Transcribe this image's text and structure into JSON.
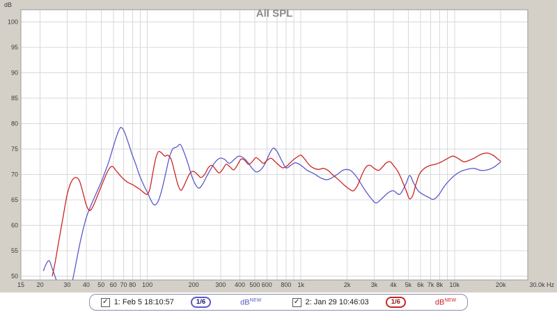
{
  "legend": {
    "entries": [
      {
        "check": "✓",
        "label": "1: Feb 5 18:10:57",
        "smoothing": "1/6",
        "unit": "dB",
        "unit_sup": "NEW",
        "color": "#5a5ac8",
        "badge_text": "#14147d"
      },
      {
        "check": "✓",
        "label": "2: Jan 29 10:46:03",
        "smoothing": "1/6",
        "unit": "dB",
        "unit_sup": "NEW",
        "color": "#cc2323",
        "badge_text": "#8c1414"
      }
    ]
  },
  "chart_data": {
    "type": "line",
    "title": "All SPL",
    "ylabel": "dB",
    "x_unit": "Hz",
    "x_scale": "log",
    "xlim": [
      15,
      30000
    ],
    "ylim": [
      49.25,
      102.4
    ],
    "grid": true,
    "y_ticks": [
      100,
      95,
      90,
      85,
      80,
      75,
      70,
      65,
      60,
      55,
      50
    ],
    "y_grid": [
      50,
      55,
      60,
      65,
      70,
      75,
      80,
      85,
      90,
      95,
      100
    ],
    "x_grid": [
      20,
      30,
      40,
      50,
      60,
      70,
      80,
      90,
      100,
      200,
      300,
      400,
      500,
      600,
      700,
      800,
      900,
      1000,
      2000,
      3000,
      4000,
      5000,
      6000,
      7000,
      8000,
      9000,
      10000,
      20000
    ],
    "x_ticks": [
      {
        "f": 15,
        "label": "15"
      },
      {
        "f": 20,
        "label": "20"
      },
      {
        "f": 30,
        "label": "30"
      },
      {
        "f": 40,
        "label": "40"
      },
      {
        "f": 50,
        "label": "50"
      },
      {
        "f": 60,
        "label": "60"
      },
      {
        "f": 70,
        "label": "70"
      },
      {
        "f": 80,
        "label": "80"
      },
      {
        "f": 100,
        "label": "100"
      },
      {
        "f": 200,
        "label": "200"
      },
      {
        "f": 300,
        "label": "300"
      },
      {
        "f": 400,
        "label": "400"
      },
      {
        "f": 500,
        "label": "500"
      },
      {
        "f": 600,
        "label": "600"
      },
      {
        "f": 800,
        "label": "800"
      },
      {
        "f": 1000,
        "label": "1k"
      },
      {
        "f": 2000,
        "label": "2k"
      },
      {
        "f": 3000,
        "label": "3k"
      },
      {
        "f": 4000,
        "label": "4k"
      },
      {
        "f": 5000,
        "label": "5k"
      },
      {
        "f": 6000,
        "label": "6k"
      },
      {
        "f": 7000,
        "label": "7k"
      },
      {
        "f": 8000,
        "label": "8k"
      },
      {
        "f": 10000,
        "label": "10k"
      },
      {
        "f": 20000,
        "label": "20k"
      },
      {
        "f": 30000,
        "label": "30.0k Hz",
        "anchor": "end"
      }
    ],
    "series": [
      {
        "name": "1: Feb 5 18:10:57",
        "color": "#5a5ac8",
        "points": [
          [
            21,
            51
          ],
          [
            22,
            52.5
          ],
          [
            23,
            53
          ],
          [
            24,
            51.5
          ],
          [
            25,
            50
          ],
          [
            27,
            47
          ],
          [
            29,
            44.5
          ],
          [
            31,
            46
          ],
          [
            33,
            50
          ],
          [
            35,
            54
          ],
          [
            37,
            57.5
          ],
          [
            40,
            61.5
          ],
          [
            43,
            64
          ],
          [
            46,
            66
          ],
          [
            50,
            68.5
          ],
          [
            53,
            70.5
          ],
          [
            56,
            72.5
          ],
          [
            60,
            75.5
          ],
          [
            63,
            77.5
          ],
          [
            66,
            79
          ],
          [
            68,
            79.2
          ],
          [
            71,
            78.3
          ],
          [
            75,
            76.3
          ],
          [
            79,
            74.2
          ],
          [
            84,
            72
          ],
          [
            89,
            69.8
          ],
          [
            95,
            67.8
          ],
          [
            100,
            66.5
          ],
          [
            106,
            64.8
          ],
          [
            111,
            64
          ],
          [
            117,
            64.6
          ],
          [
            123,
            66.5
          ],
          [
            130,
            69.5
          ],
          [
            138,
            73
          ],
          [
            146,
            75
          ],
          [
            155,
            75.4
          ],
          [
            164,
            75.9
          ],
          [
            173,
            74.4
          ],
          [
            183,
            72.3
          ],
          [
            193,
            70
          ],
          [
            204,
            68.2
          ],
          [
            216,
            67.3
          ],
          [
            229,
            68.1
          ],
          [
            243,
            69.6
          ],
          [
            259,
            71.1
          ],
          [
            276,
            72.4
          ],
          [
            296,
            73.2
          ],
          [
            317,
            73
          ],
          [
            341,
            72.2
          ],
          [
            366,
            72.9
          ],
          [
            392,
            73.6
          ],
          [
            420,
            73.3
          ],
          [
            450,
            72.4
          ],
          [
            481,
            71.2
          ],
          [
            512,
            70.5
          ],
          [
            546,
            70.9
          ],
          [
            583,
            72.1
          ],
          [
            622,
            74
          ],
          [
            661,
            75.2
          ],
          [
            702,
            74.4
          ],
          [
            750,
            72.7
          ],
          [
            800,
            71.3
          ],
          [
            858,
            71.8
          ],
          [
            920,
            72.3
          ],
          [
            1000,
            71.8
          ],
          [
            1100,
            70.8
          ],
          [
            1210,
            70.2
          ],
          [
            1350,
            69.3
          ],
          [
            1500,
            69
          ],
          [
            1700,
            69.9
          ],
          [
            1900,
            70.9
          ],
          [
            2100,
            70.8
          ],
          [
            2320,
            69.4
          ],
          [
            2600,
            67
          ],
          [
            2900,
            65.1
          ],
          [
            3100,
            64.4
          ],
          [
            3400,
            65.4
          ],
          [
            3700,
            66.4
          ],
          [
            4000,
            66.8
          ],
          [
            4400,
            66.1
          ],
          [
            4800,
            68
          ],
          [
            5100,
            69.8
          ],
          [
            5400,
            68.4
          ],
          [
            5800,
            66.8
          ],
          [
            6300,
            66
          ],
          [
            6800,
            65.5
          ],
          [
            7300,
            65.1
          ],
          [
            7900,
            66
          ],
          [
            8600,
            67.7
          ],
          [
            9300,
            68.9
          ],
          [
            10000,
            69.8
          ],
          [
            11000,
            70.6
          ],
          [
            12100,
            71
          ],
          [
            13400,
            71.2
          ],
          [
            15000,
            70.8
          ],
          [
            16800,
            71
          ],
          [
            18400,
            71.6
          ],
          [
            20000,
            72.5
          ]
        ]
      },
      {
        "name": "2: Jan 29 10:46:03",
        "color": "#cc2323",
        "points": [
          [
            24,
            50
          ],
          [
            25,
            52.5
          ],
          [
            26,
            55.5
          ],
          [
            28,
            61
          ],
          [
            30,
            66
          ],
          [
            32,
            68.6
          ],
          [
            34,
            69.4
          ],
          [
            36,
            68.8
          ],
          [
            38,
            66.5
          ],
          [
            40,
            64
          ],
          [
            42,
            62.9
          ],
          [
            44,
            63.6
          ],
          [
            47,
            65.6
          ],
          [
            50,
            67.6
          ],
          [
            53,
            69.5
          ],
          [
            56,
            71
          ],
          [
            59,
            71.6
          ],
          [
            62,
            70.9
          ],
          [
            66,
            69.9
          ],
          [
            70,
            69.1
          ],
          [
            75,
            68.4
          ],
          [
            80,
            68
          ],
          [
            85,
            67.5
          ],
          [
            90,
            67
          ],
          [
            95,
            66.4
          ],
          [
            100,
            66.1
          ],
          [
            104,
            67.3
          ],
          [
            108,
            70
          ],
          [
            113,
            73
          ],
          [
            118,
            74.5
          ],
          [
            124,
            74.2
          ],
          [
            130,
            73.6
          ],
          [
            136,
            73.8
          ],
          [
            143,
            72.9
          ],
          [
            150,
            70.6
          ],
          [
            158,
            68
          ],
          [
            165,
            66.9
          ],
          [
            172,
            67.6
          ],
          [
            181,
            69.1
          ],
          [
            190,
            70.3
          ],
          [
            200,
            70.6
          ],
          [
            212,
            70
          ],
          [
            223,
            69.4
          ],
          [
            236,
            70
          ],
          [
            249,
            71.3
          ],
          [
            263,
            71.8
          ],
          [
            278,
            71
          ],
          [
            293,
            70.3
          ],
          [
            309,
            71
          ],
          [
            326,
            72
          ],
          [
            345,
            71.5
          ],
          [
            365,
            70.9
          ],
          [
            386,
            71.9
          ],
          [
            407,
            73
          ],
          [
            430,
            72.8
          ],
          [
            455,
            72
          ],
          [
            481,
            72.5
          ],
          [
            509,
            73.3
          ],
          [
            539,
            72.8
          ],
          [
            570,
            72.2
          ],
          [
            603,
            72.8
          ],
          [
            640,
            73.2
          ],
          [
            680,
            72.5
          ],
          [
            721,
            71.8
          ],
          [
            762,
            71.3
          ],
          [
            806,
            71.6
          ],
          [
            852,
            72.3
          ],
          [
            901,
            73
          ],
          [
            952,
            73.5
          ],
          [
            1000,
            73.8
          ],
          [
            1060,
            73
          ],
          [
            1122,
            72
          ],
          [
            1200,
            71.3
          ],
          [
            1300,
            71
          ],
          [
            1400,
            71.2
          ],
          [
            1500,
            70.8
          ],
          [
            1600,
            70
          ],
          [
            1750,
            69
          ],
          [
            1900,
            68
          ],
          [
            2050,
            67.2
          ],
          [
            2200,
            66.8
          ],
          [
            2350,
            68
          ],
          [
            2500,
            70
          ],
          [
            2660,
            71.5
          ],
          [
            2820,
            71.8
          ],
          [
            3000,
            71.2
          ],
          [
            3200,
            70.8
          ],
          [
            3400,
            71.5
          ],
          [
            3600,
            72.3
          ],
          [
            3810,
            72.5
          ],
          [
            4000,
            71.8
          ],
          [
            4300,
            70.5
          ],
          [
            4600,
            68.5
          ],
          [
            4900,
            66.4
          ],
          [
            5100,
            65.2
          ],
          [
            5350,
            65.9
          ],
          [
            5600,
            68
          ],
          [
            5900,
            70
          ],
          [
            6250,
            71
          ],
          [
            6600,
            71.5
          ],
          [
            7000,
            71.8
          ],
          [
            7500,
            72
          ],
          [
            8000,
            72.3
          ],
          [
            8600,
            72.8
          ],
          [
            9200,
            73.3
          ],
          [
            9800,
            73.6
          ],
          [
            10500,
            73.2
          ],
          [
            11500,
            72.5
          ],
          [
            12500,
            72.8
          ],
          [
            13600,
            73.3
          ],
          [
            15000,
            74
          ],
          [
            16500,
            74.2
          ],
          [
            18000,
            73.7
          ],
          [
            19000,
            73.1
          ],
          [
            20000,
            72.6
          ]
        ]
      }
    ]
  }
}
